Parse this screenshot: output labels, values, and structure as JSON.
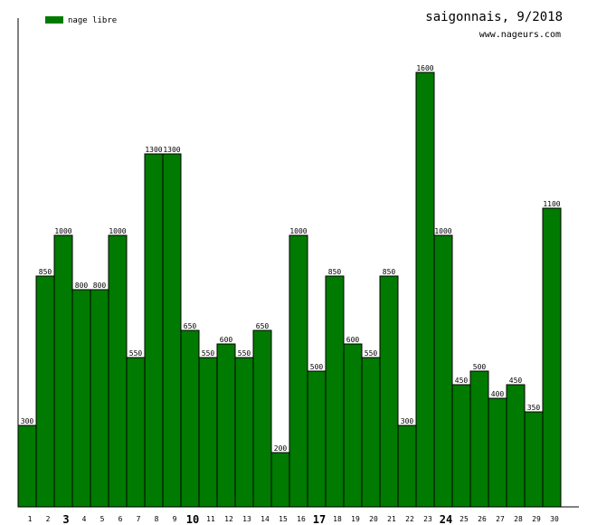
{
  "header": {
    "title": "saigonnais, 9/2018",
    "site": "www.nageurs.com"
  },
  "colors": {
    "bar_fill": "#007a00",
    "bar_stroke": "#000000",
    "axis": "#000000",
    "legend_swatch": "#007a00",
    "background": "#ffffff"
  },
  "chart_data": {
    "type": "bar",
    "title": "saigonnais, 9/2018",
    "xlabel": "",
    "ylabel": "",
    "categories": [
      "1",
      "2",
      "3",
      "4",
      "5",
      "6",
      "7",
      "8",
      "9",
      "10",
      "11",
      "12",
      "13",
      "14",
      "15",
      "16",
      "17",
      "18",
      "19",
      "20",
      "21",
      "22",
      "23",
      "24",
      "25",
      "26",
      "27",
      "28",
      "29",
      "30"
    ],
    "bold_categories": [
      "3",
      "10",
      "17",
      "24"
    ],
    "series": [
      {
        "name": "nage libre",
        "values": [
          300,
          850,
          1000,
          800,
          800,
          1000,
          550,
          1300,
          1300,
          650,
          550,
          600,
          550,
          650,
          200,
          1000,
          500,
          850,
          600,
          550,
          850,
          300,
          1600,
          1000,
          450,
          500,
          400,
          450,
          350,
          1100
        ]
      }
    ],
    "value_labels": [
      "300",
      "850",
      "1000",
      "800",
      "800",
      "1000",
      "550",
      "1300",
      "1300",
      "650",
      "550",
      "600",
      "550",
      "650",
      "200",
      "1000",
      "500",
      "850",
      "600",
      "550",
      "850",
      "300",
      "1600",
      "1000",
      "450",
      "500",
      "400",
      "450",
      "350",
      "1100"
    ],
    "ylim": [
      0,
      1800
    ],
    "grid": false,
    "legend_position": "top-left"
  }
}
